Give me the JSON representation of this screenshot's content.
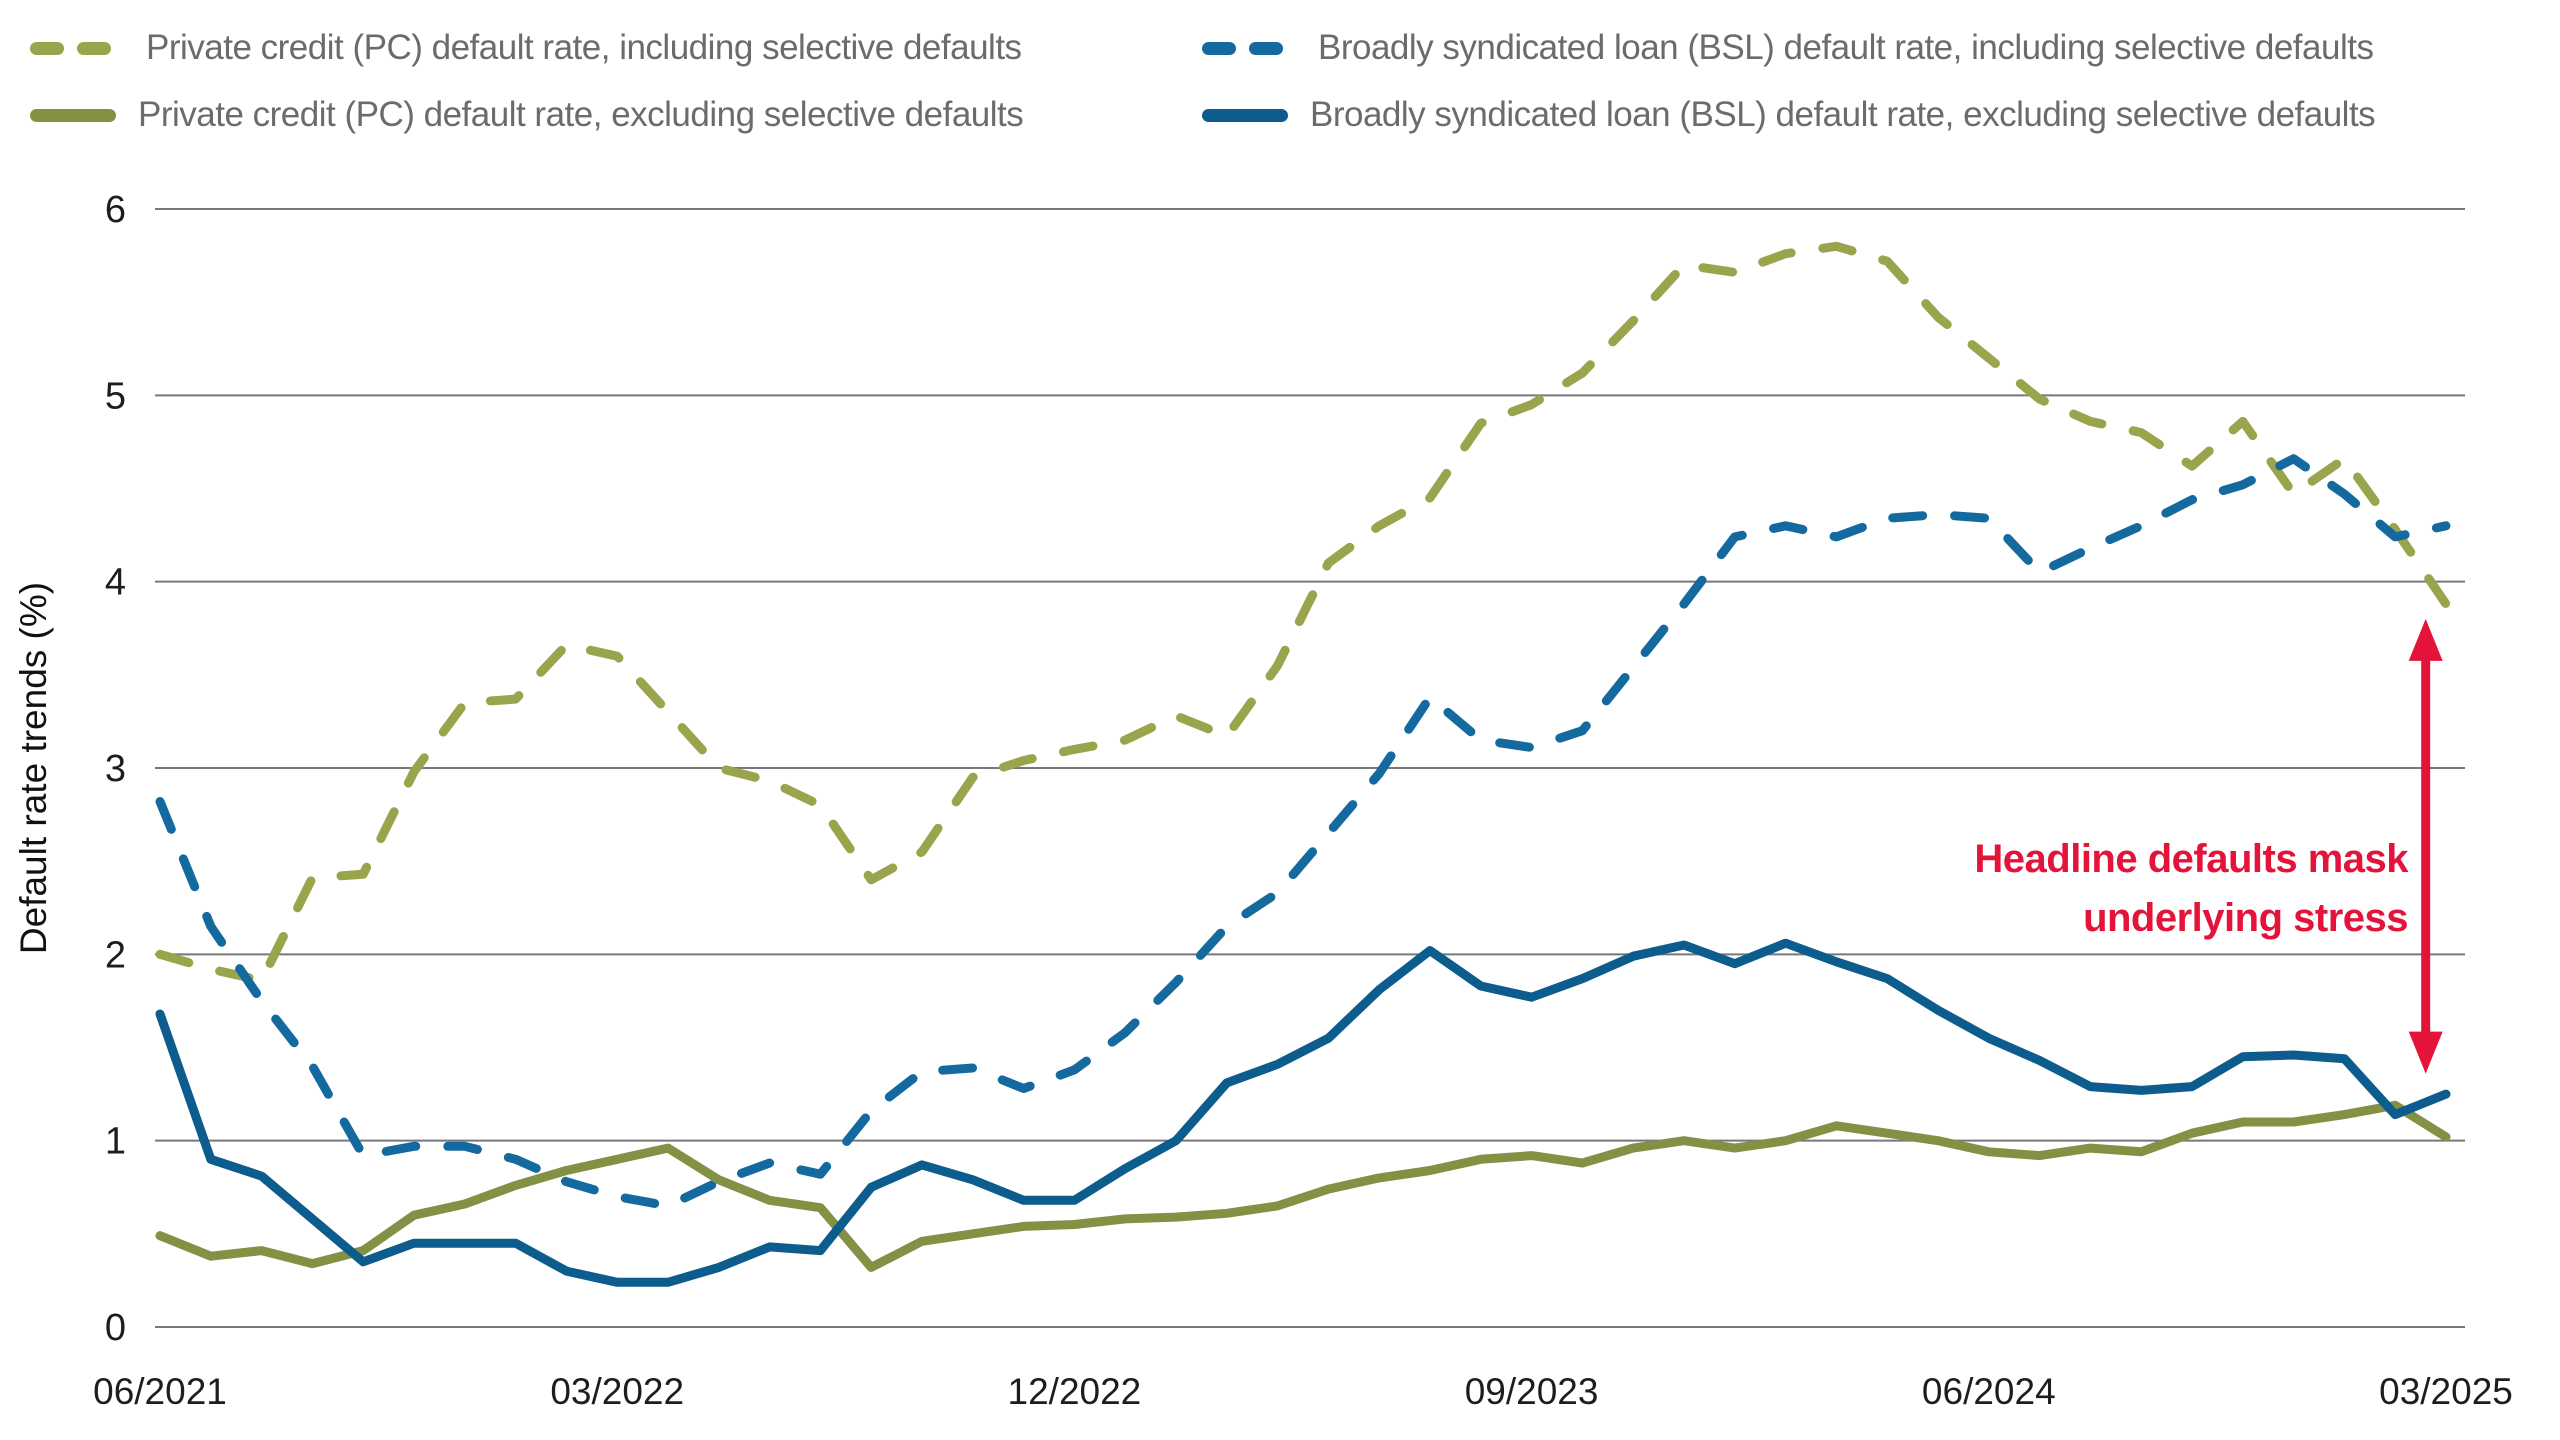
{
  "legend": {
    "items": [
      {
        "id": "pc-incl",
        "label": "Private credit (PC) default rate, including selective defaults",
        "style": "dashed",
        "color": "#9aa44c"
      },
      {
        "id": "bsl-incl",
        "label": "Broadly syndicated loan (BSL) default rate, including selective defaults",
        "style": "dashed",
        "color": "#146a9f"
      },
      {
        "id": "pc-excl",
        "label": "Private credit (PC) default rate, excluding selective defaults",
        "style": "solid",
        "color": "#829144"
      },
      {
        "id": "bsl-excl",
        "label": "Broadly syndicated loan (BSL) default rate, excluding selective defaults",
        "style": "solid",
        "color": "#0c5c8e"
      }
    ]
  },
  "annotation": {
    "line1": "Headline defaults mask",
    "line2": "underlying stress",
    "color": "#e4133a",
    "arrow": {
      "x_month_index": 44.6,
      "from_value": 3.8,
      "to_value": 1.36
    }
  },
  "chart_data": {
    "type": "line",
    "title": "",
    "xlabel": "",
    "ylabel": "Default rate trends (%)",
    "ylim": [
      0,
      6
    ],
    "yticks": [
      0,
      1,
      2,
      3,
      4,
      5,
      6
    ],
    "grid": "horizontal",
    "legend_position": "top",
    "x": [
      "06/2021",
      "07/2021",
      "08/2021",
      "09/2021",
      "10/2021",
      "11/2021",
      "12/2021",
      "01/2022",
      "02/2022",
      "03/2022",
      "04/2022",
      "05/2022",
      "06/2022",
      "07/2022",
      "08/2022",
      "09/2022",
      "10/2022",
      "11/2022",
      "12/2022",
      "01/2023",
      "02/2023",
      "03/2023",
      "04/2023",
      "05/2023",
      "06/2023",
      "07/2023",
      "08/2023",
      "09/2023",
      "10/2023",
      "11/2023",
      "12/2023",
      "01/2024",
      "02/2024",
      "03/2024",
      "04/2024",
      "05/2024",
      "06/2024",
      "07/2024",
      "08/2024",
      "09/2024",
      "10/2024",
      "11/2024",
      "12/2024",
      "01/2025",
      "02/2025",
      "03/2025"
    ],
    "xtick_labels": [
      "06/2021",
      "03/2022",
      "12/2022",
      "09/2023",
      "06/2024",
      "03/2025"
    ],
    "xtick_indices": [
      0,
      9,
      18,
      27,
      36,
      45
    ],
    "series": [
      {
        "name": "Private credit (PC) default rate, including selective defaults",
        "style": "dashed",
        "color": "#9aa44c",
        "values": [
          2.0,
          1.92,
          1.86,
          2.41,
          2.43,
          2.98,
          3.35,
          3.37,
          3.66,
          3.6,
          3.3,
          3.0,
          2.93,
          2.8,
          2.4,
          2.55,
          2.95,
          3.04,
          3.1,
          3.15,
          3.28,
          3.17,
          3.55,
          4.1,
          4.3,
          4.45,
          4.85,
          4.95,
          5.12,
          5.4,
          5.7,
          5.66,
          5.76,
          5.8,
          5.72,
          5.42,
          5.2,
          4.98,
          4.86,
          4.8,
          4.62,
          4.86,
          4.47,
          4.66,
          4.28,
          3.88
        ]
      },
      {
        "name": "Broadly syndicated loan (BSL) default rate, including selective defaults",
        "style": "dashed",
        "color": "#146a9f",
        "values": [
          2.82,
          2.15,
          1.75,
          1.4,
          0.92,
          0.97,
          0.97,
          0.9,
          0.78,
          0.7,
          0.65,
          0.78,
          0.88,
          0.82,
          1.16,
          1.37,
          1.39,
          1.28,
          1.38,
          1.58,
          1.85,
          2.15,
          2.33,
          2.65,
          2.97,
          3.38,
          3.15,
          3.11,
          3.2,
          3.54,
          3.88,
          4.24,
          4.3,
          4.24,
          4.34,
          4.36,
          4.34,
          4.05,
          4.18,
          4.3,
          4.44,
          4.52,
          4.66,
          4.47,
          4.24,
          4.3
        ]
      },
      {
        "name": "Private credit (PC) default rate, excluding selective defaults",
        "style": "solid",
        "color": "#829144",
        "values": [
          0.49,
          0.38,
          0.41,
          0.34,
          0.41,
          0.6,
          0.66,
          0.76,
          0.84,
          0.9,
          0.96,
          0.79,
          0.68,
          0.64,
          0.32,
          0.46,
          0.5,
          0.54,
          0.55,
          0.58,
          0.59,
          0.61,
          0.65,
          0.74,
          0.8,
          0.84,
          0.9,
          0.92,
          0.88,
          0.96,
          1.0,
          0.96,
          1.0,
          1.08,
          1.04,
          1.0,
          0.94,
          0.92,
          0.96,
          0.94,
          1.04,
          1.1,
          1.1,
          1.14,
          1.19,
          1.02
        ]
      },
      {
        "name": "Broadly syndicated loan (BSL) default rate, excluding selective defaults",
        "style": "solid",
        "color": "#0c5c8e",
        "values": [
          1.68,
          0.9,
          0.81,
          0.58,
          0.35,
          0.45,
          0.45,
          0.45,
          0.3,
          0.24,
          0.24,
          0.32,
          0.43,
          0.41,
          0.75,
          0.87,
          0.79,
          0.68,
          0.68,
          0.85,
          1.0,
          1.31,
          1.41,
          1.55,
          1.81,
          2.02,
          1.83,
          1.77,
          1.87,
          1.99,
          2.05,
          1.95,
          2.06,
          1.96,
          1.87,
          1.7,
          1.55,
          1.43,
          1.29,
          1.27,
          1.29,
          1.45,
          1.46,
          1.44,
          1.14,
          1.25
        ]
      }
    ],
    "text_colors": {
      "ticks": "#1d1d1f",
      "legend_text": "#6a6b6e",
      "gridline": "#76777a"
    }
  }
}
